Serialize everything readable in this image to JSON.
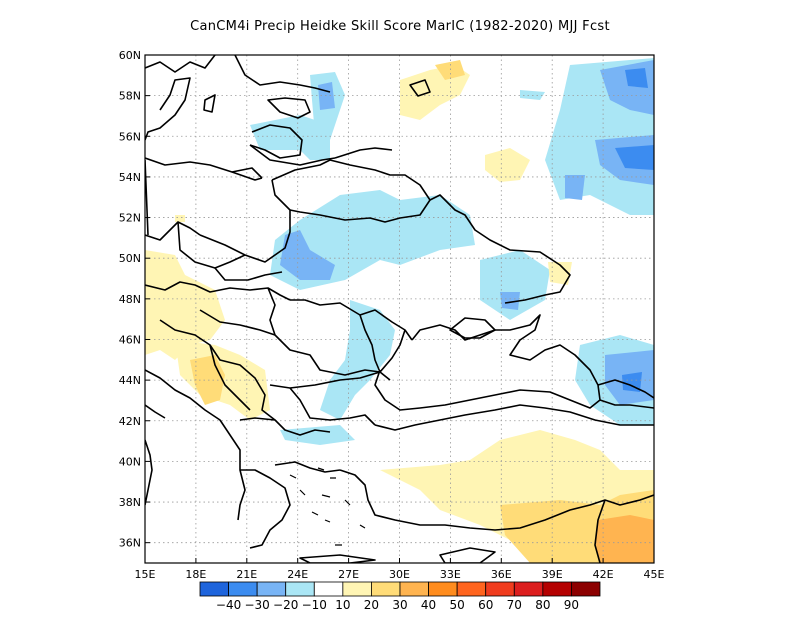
{
  "title": "CanCM4i Precip Heidke Skill Score MarIC (1982-2020) MJJ Fcst",
  "map": {
    "lon_range": [
      15,
      45
    ],
    "lat_range": [
      35,
      60
    ],
    "x_ticks": [
      "15E",
      "18E",
      "21E",
      "24E",
      "27E",
      "30E",
      "33E",
      "36E",
      "39E",
      "42E",
      "45E"
    ],
    "y_ticks": [
      "60N",
      "58N",
      "56N",
      "54N",
      "52N",
      "50N",
      "48N",
      "46N",
      "44N",
      "42N",
      "40N",
      "38N",
      "36N"
    ],
    "grid": "dotted"
  },
  "colorbar": {
    "labels": [
      "-40",
      "-30",
      "-20",
      "-10",
      "10",
      "20",
      "30",
      "40",
      "50",
      "60",
      "70",
      "80",
      "90"
    ],
    "colors": [
      "#1e64dc",
      "#3c8cf0",
      "#78b4f5",
      "#aae6f5",
      "#ffffff",
      "#fff5b4",
      "#ffdc78",
      "#ffb450",
      "#ff8c1e",
      "#ff641e",
      "#f03c1e",
      "#dc1e1e",
      "#b40000",
      "#8c0000"
    ]
  },
  "regions": [
    {
      "name": "blue-west-russia",
      "class": "light-blue",
      "color": "#aae6f5"
    },
    {
      "name": "blue-ukraine",
      "class": "light-blue",
      "color": "#aae6f5"
    },
    {
      "name": "blue-northeast",
      "class": "light-blue",
      "color": "#aae6f5"
    },
    {
      "name": "blue-caucasus",
      "class": "light-blue",
      "color": "#aae6f5"
    },
    {
      "name": "blue-balkan",
      "class": "light-blue",
      "color": "#aae6f5"
    },
    {
      "name": "mid-blue-poland",
      "class": "mid-blue",
      "color": "#78b4f5"
    },
    {
      "name": "mid-blue-northeast",
      "class": "mid-blue",
      "color": "#78b4f5"
    },
    {
      "name": "dark-blue-northeast",
      "class": "dark-blue",
      "color": "#3c8cf0"
    },
    {
      "name": "yellow-west",
      "class": "light-yellow",
      "color": "#fff5b4"
    },
    {
      "name": "yellow-turkey",
      "class": "light-yellow",
      "color": "#fff5b4"
    },
    {
      "name": "yellow-north",
      "class": "light-yellow",
      "color": "#fff5b4"
    },
    {
      "name": "orange-southeast",
      "class": "mid-yellow",
      "color": "#ffdc78"
    },
    {
      "name": "orange-deep",
      "class": "orange",
      "color": "#ffb450"
    }
  ]
}
